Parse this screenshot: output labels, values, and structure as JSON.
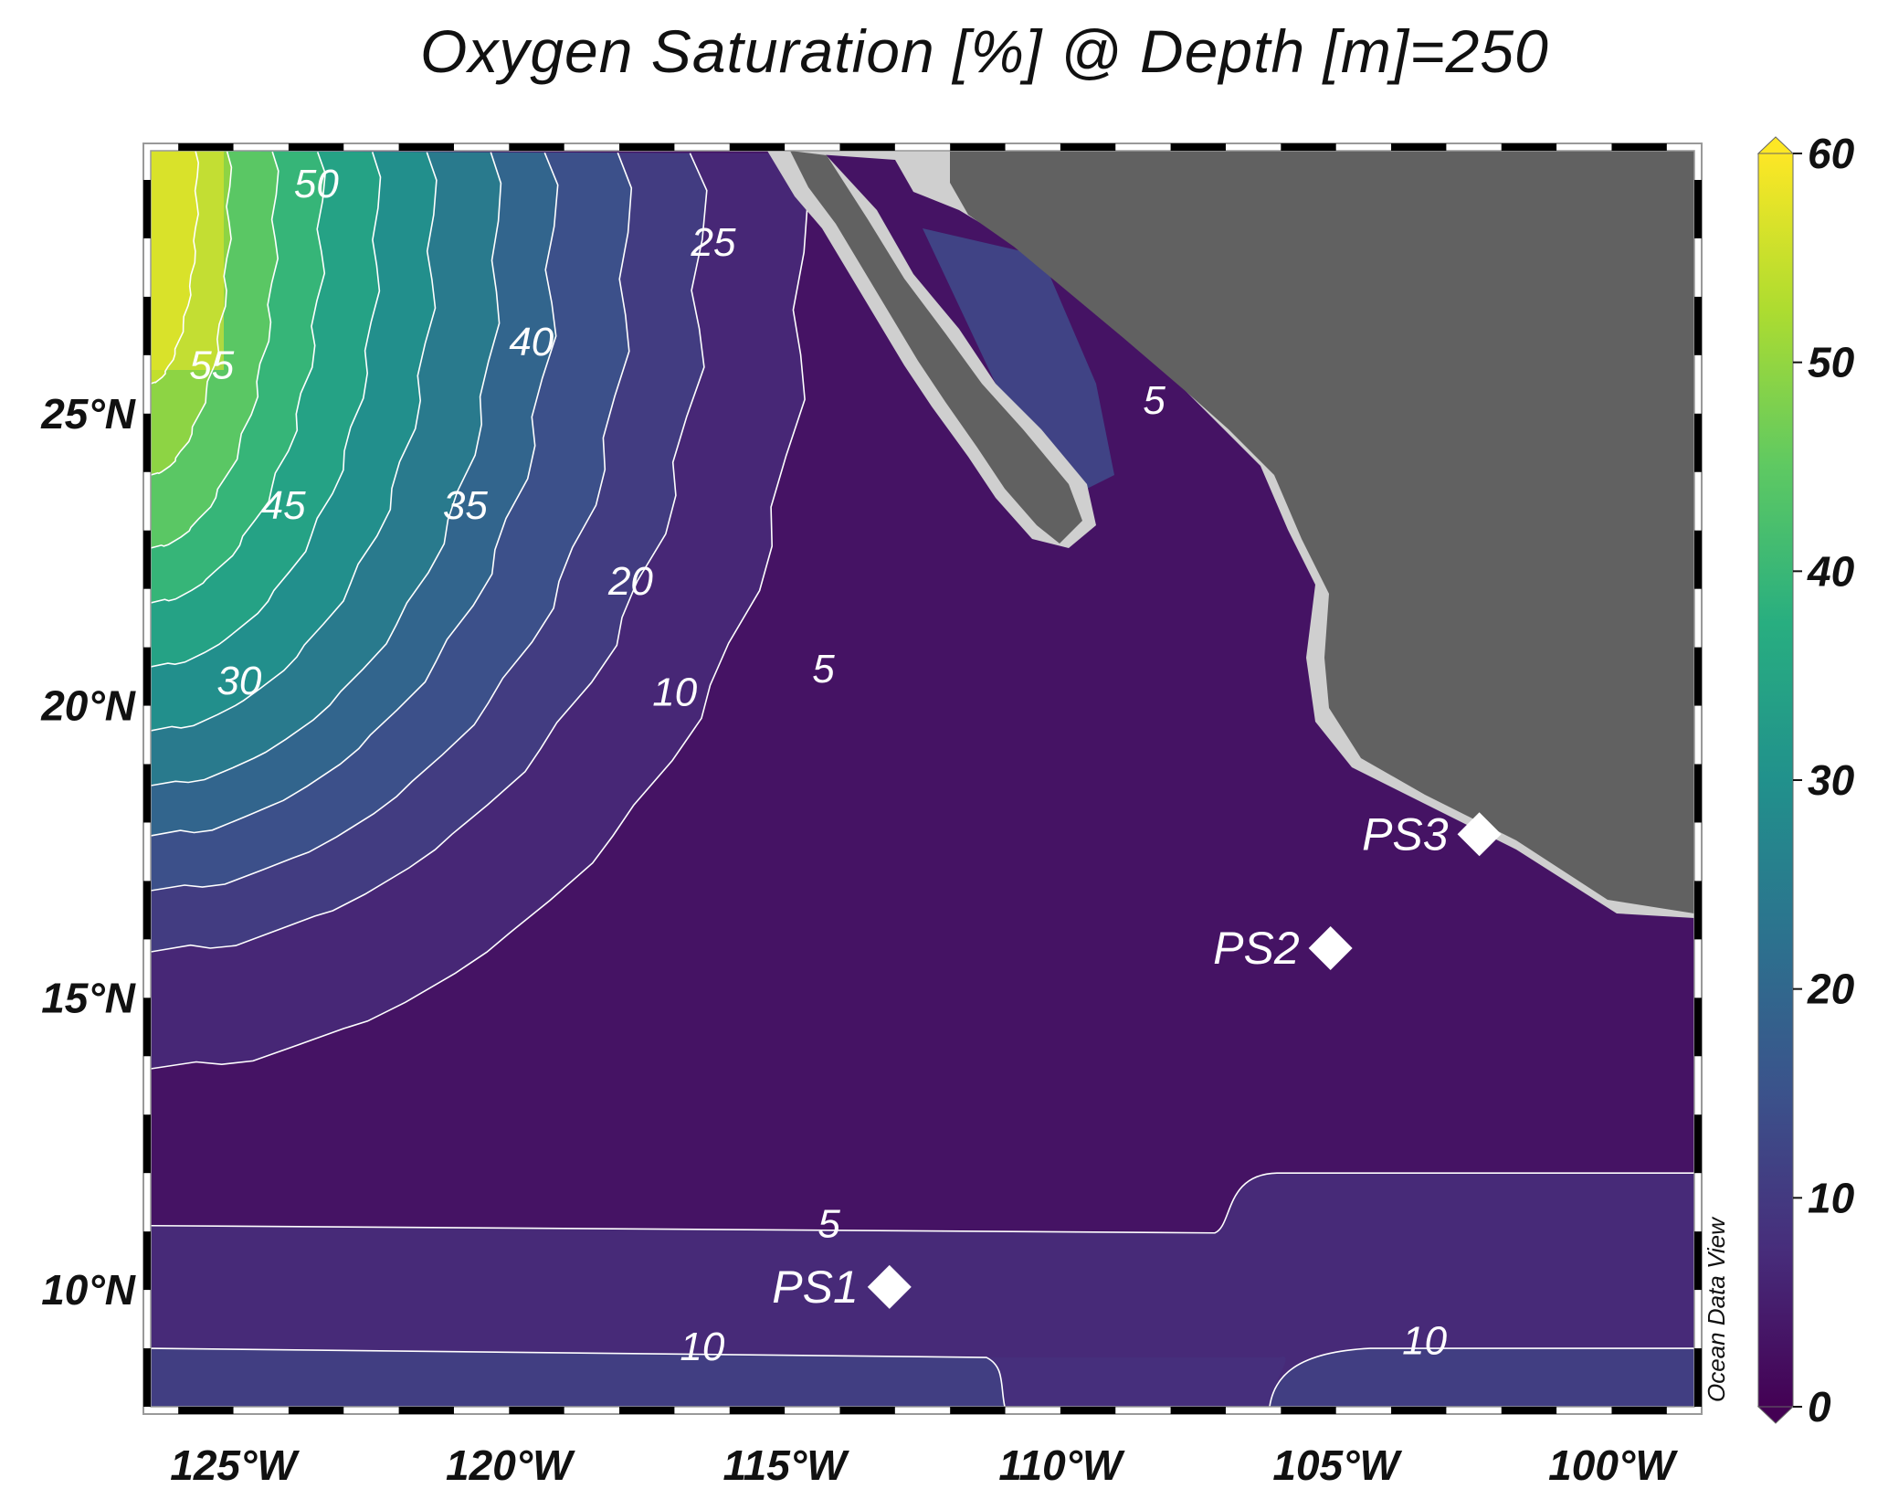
{
  "title": "Oxygen Saturation [%] @ Depth [m]=250",
  "brand": "Ocean Data View",
  "chart_data": {
    "type": "heatmap",
    "title": "Oxygen Saturation [%] @ Depth [m]=250",
    "variable": "Oxygen Saturation [%]",
    "depth_m": 250,
    "xlim": [
      -126.5,
      -98.5
    ],
    "ylim": [
      8,
      29.5
    ],
    "x_ticks": [
      {
        "value": -125,
        "label": "125°W"
      },
      {
        "value": -120,
        "label": "120°W"
      },
      {
        "value": -115,
        "label": "115°W"
      },
      {
        "value": -110,
        "label": "110°W"
      },
      {
        "value": -105,
        "label": "105°W"
      },
      {
        "value": -100,
        "label": "100°W"
      }
    ],
    "y_ticks": [
      {
        "value": 10,
        "label": "10°N"
      },
      {
        "value": 15,
        "label": "15°N"
      },
      {
        "value": 20,
        "label": "20°N"
      },
      {
        "value": 25,
        "label": "25°N"
      }
    ],
    "colorbar": {
      "min": 0,
      "max": 60,
      "extend": "both",
      "colormap": "viridis",
      "stops": [
        "#440154",
        "#472d7b",
        "#3b528b",
        "#2c728e",
        "#21918c",
        "#28ae80",
        "#5ec962",
        "#addc30",
        "#fde725"
      ],
      "ticks": [
        {
          "value": 0,
          "label": "0"
        },
        {
          "value": 10,
          "label": "10"
        },
        {
          "value": 20,
          "label": "20"
        },
        {
          "value": 30,
          "label": "30"
        },
        {
          "value": 40,
          "label": "40"
        },
        {
          "value": 50,
          "label": "50"
        },
        {
          "value": 60,
          "label": "60"
        }
      ]
    },
    "contour_labels": [
      {
        "text": "50",
        "lon": -123.9,
        "lat": 28.7
      },
      {
        "text": "55",
        "lon": -125.8,
        "lat": 25.6
      },
      {
        "text": "40",
        "lon": -120.0,
        "lat": 26.0
      },
      {
        "text": "25",
        "lon": -116.7,
        "lat": 27.7
      },
      {
        "text": "45",
        "lon": -124.5,
        "lat": 23.2
      },
      {
        "text": "35",
        "lon": -121.2,
        "lat": 23.2
      },
      {
        "text": "20",
        "lon": -118.2,
        "lat": 21.9
      },
      {
        "text": "30",
        "lon": -125.3,
        "lat": 20.2
      },
      {
        "text": "10",
        "lon": -117.4,
        "lat": 20.0
      },
      {
        "text": "5",
        "lon": -114.5,
        "lat": 20.4
      },
      {
        "text": "5",
        "lon": -108.5,
        "lat": 25.0
      },
      {
        "text": "5",
        "lon": -114.4,
        "lat": 10.9
      },
      {
        "text": "10",
        "lon": -116.9,
        "lat": 8.8
      },
      {
        "text": "10",
        "lon": -103.8,
        "lat": 8.9
      }
    ],
    "stations": [
      {
        "name": "PS1",
        "lon": -113.1,
        "lat": 10.05
      },
      {
        "name": "PS2",
        "lon": -105.1,
        "lat": 15.85
      },
      {
        "name": "PS3",
        "lon": -102.4,
        "lat": 17.8
      }
    ],
    "colors": {
      "land": "#616161",
      "shelf": "#cfcfcf",
      "contour": "#ffffff",
      "station": "#ffffff"
    }
  }
}
